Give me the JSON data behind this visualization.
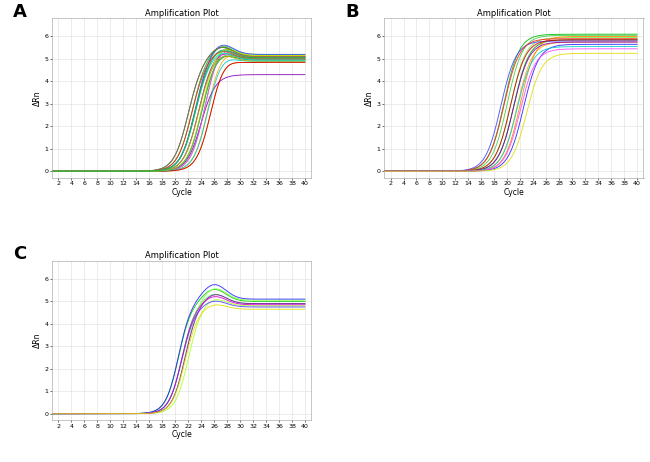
{
  "title": "Amplification Plot",
  "xlabel": "Cycle",
  "ylabel": "ΔRn",
  "xlim": [
    1,
    41
  ],
  "ylim": [
    -0.3,
    6.8
  ],
  "xticks": [
    2,
    4,
    6,
    8,
    10,
    12,
    14,
    16,
    18,
    20,
    22,
    24,
    26,
    28,
    30,
    32,
    34,
    36,
    38,
    40
  ],
  "yticks": [
    0,
    1,
    2,
    3,
    4,
    5,
    6
  ],
  "panel_labels": [
    "A",
    "B",
    "C"
  ],
  "panel_A": {
    "n_curves": 22,
    "midpoints": [
      22.5,
      23.0,
      23.5,
      24.0,
      24.5,
      25.0,
      25.5,
      22.0,
      23.0,
      24.0,
      23.5,
      24.5,
      25.0,
      23.0,
      22.5,
      25.5,
      24.0,
      23.5,
      23.0,
      22.0,
      24.0,
      23.0
    ],
    "steepness": [
      0.9,
      0.9,
      0.9,
      0.9,
      0.9,
      0.9,
      0.9,
      0.9,
      0.9,
      0.9,
      0.9,
      0.9,
      0.9,
      0.9,
      0.9,
      0.9,
      0.9,
      0.9,
      0.9,
      0.9,
      0.9,
      0.9
    ],
    "plateaus": [
      5.1,
      5.2,
      5.0,
      4.95,
      5.15,
      5.05,
      4.85,
      5.1,
      5.2,
      4.3,
      5.0,
      5.1,
      4.9,
      5.05,
      5.0,
      4.85,
      5.15,
      4.9,
      4.95,
      5.1,
      5.0,
      5.05
    ],
    "peak_factors": [
      1.1,
      1.09,
      1.08,
      1.07,
      1.11,
      1.08,
      1.06,
      1.09,
      1.1,
      1.0,
      1.07,
      1.1,
      1.07,
      1.09,
      1.08,
      1.06,
      1.09,
      1.07,
      1.08,
      1.09,
      1.07,
      1.08
    ],
    "peak_positions": [
      27,
      27,
      27,
      27,
      27,
      27,
      27,
      27,
      27,
      27,
      27,
      27,
      27,
      27,
      27,
      27,
      27,
      27,
      27,
      27,
      27,
      27
    ],
    "colors": [
      "#00bb00",
      "#44cc44",
      "#77ee44",
      "#009900",
      "#22dd22",
      "#ffaa00",
      "#ff8800",
      "#2222ff",
      "#4444ff",
      "#8800bb",
      "#cc00cc",
      "#ff44ff",
      "#00cccc",
      "#009999",
      "#ff2222",
      "#cc0000",
      "#dddd00",
      "#aaaa00",
      "#00dddd",
      "#888800",
      "#55bb55",
      "#33aa33"
    ]
  },
  "panel_B": {
    "n_curves": 14,
    "midpoints": [
      19.5,
      20.0,
      20.5,
      21.0,
      21.5,
      22.0,
      22.5,
      19.0,
      19.5,
      20.5,
      21.0,
      21.5,
      22.0,
      23.0
    ],
    "steepness": [
      0.85,
      0.85,
      0.85,
      0.85,
      0.85,
      0.85,
      0.85,
      0.85,
      0.85,
      0.85,
      0.85,
      0.85,
      0.85,
      0.85
    ],
    "plateaus": [
      6.1,
      6.05,
      5.95,
      5.85,
      5.75,
      6.0,
      5.65,
      5.8,
      5.9,
      5.85,
      5.75,
      5.55,
      5.45,
      5.25
    ],
    "peak_factors": [
      1.0,
      1.0,
      1.0,
      1.0,
      1.0,
      1.0,
      1.0,
      1.0,
      1.0,
      1.0,
      1.0,
      1.0,
      1.0,
      1.0
    ],
    "peak_positions": [
      26,
      26,
      26,
      26,
      26,
      26,
      26,
      26,
      26,
      26,
      26,
      26,
      26,
      26
    ],
    "colors": [
      "#00bb00",
      "#44cc44",
      "#77ee44",
      "#009900",
      "#ffaa00",
      "#ff8800",
      "#2222ff",
      "#4444ff",
      "#ff2222",
      "#cc0000",
      "#8800bb",
      "#00cccc",
      "#ff44ff",
      "#dddd00"
    ]
  },
  "panel_C": {
    "n_curves": 9,
    "midpoints": [
      20.5,
      21.0,
      21.5,
      22.0,
      20.5,
      21.0,
      21.5,
      21.0,
      21.5
    ],
    "steepness": [
      1.0,
      1.0,
      1.0,
      1.0,
      1.0,
      1.0,
      1.0,
      1.0,
      1.0
    ],
    "plateaus": [
      5.0,
      4.9,
      5.05,
      4.8,
      5.1,
      4.75,
      4.9,
      4.85,
      4.65
    ],
    "peak_factors": [
      1.11,
      1.09,
      1.11,
      1.07,
      1.13,
      1.06,
      1.09,
      1.08,
      1.05
    ],
    "peak_positions": [
      26,
      26,
      26,
      26,
      26,
      26,
      26,
      26,
      26
    ],
    "colors": [
      "#00cc00",
      "#44ff44",
      "#88ff44",
      "#aaff22",
      "#2222ff",
      "#4444ff",
      "#8800bb",
      "#cc00cc",
      "#dddd00"
    ]
  },
  "bg_color": "#ffffff",
  "grid_color": "#dddddd",
  "spine_color": "#999999",
  "tick_fontsize": 4.5,
  "label_fontsize": 5.5,
  "title_fontsize": 6.0,
  "panel_label_fontsize": 13,
  "linewidth": 0.65
}
